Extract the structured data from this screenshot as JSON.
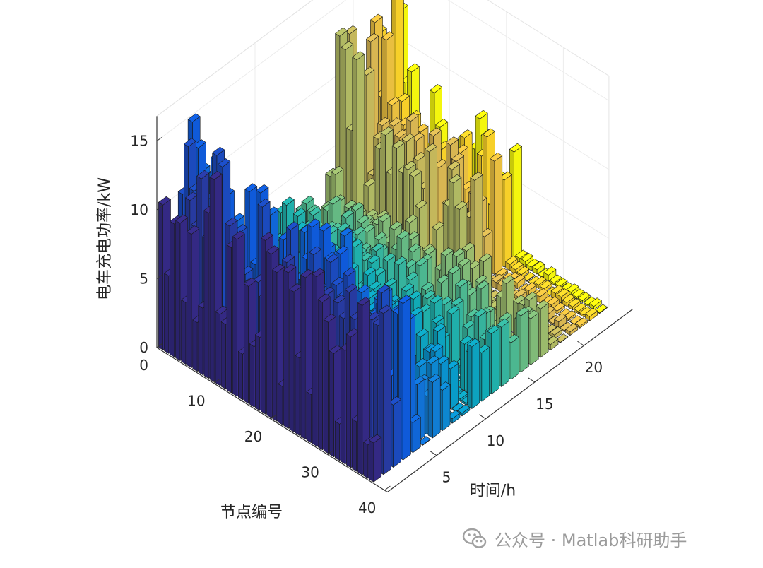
{
  "chart_data": {
    "type": "bar3d",
    "title": "",
    "ylabel": "电车充电功率/kW",
    "node_axis_label": "节点编号",
    "time_axis_label": "时间/h",
    "zlim": [
      0,
      15
    ],
    "z_ticks": [
      "0",
      "5",
      "10",
      "15"
    ],
    "node_ticks": [
      "0",
      "10",
      "20",
      "30",
      "40"
    ],
    "time_ticks": [
      "5",
      "10",
      "15",
      "20"
    ],
    "nodes": 38,
    "hours": 24,
    "colormap": "parula",
    "grid": true
  },
  "watermark": {
    "icon": "wechat-icon",
    "text": "公众号 · Matlab科研助手"
  }
}
